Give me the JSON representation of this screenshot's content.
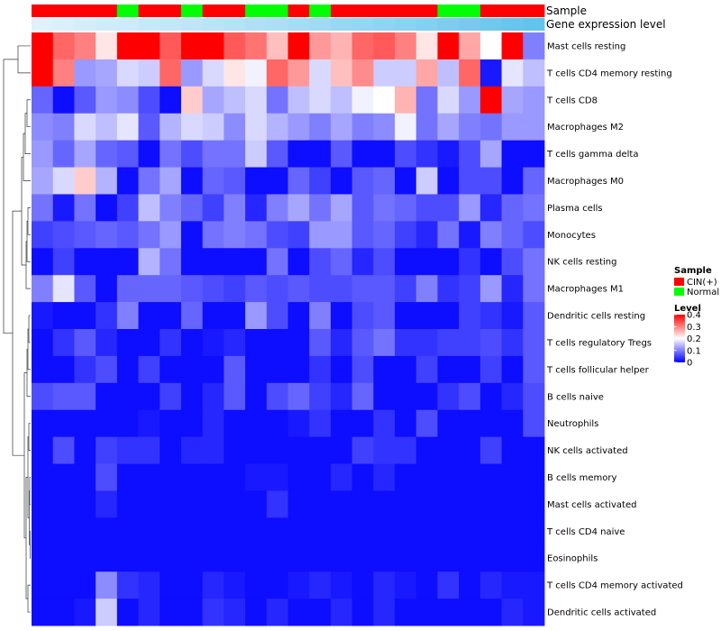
{
  "chart_data": {
    "type": "heatmap",
    "title": "",
    "row_labels": [
      "Mast cells resting",
      "T cells CD4 memory resting",
      "T cells CD8",
      "Macrophages M2",
      "T cells gamma delta",
      "Macrophages M0",
      "Plasma cells",
      "Monocytes",
      "NK cells resting",
      "Macrophages M1",
      "Dendritic cells resting",
      "T cells regulatory  Tregs",
      "T cells follicular helper",
      "B cells naive",
      "Neutrophils",
      "NK cells activated",
      "B cells memory",
      "Mast cells activated",
      "T cells CD4 naive",
      "Eosinophils",
      "T cells CD4 memory activated",
      "Dendritic cells activated"
    ],
    "column_annotations": {
      "sample_label": "Sample",
      "gene_expression_label": "Gene expression level",
      "sample_groups": [
        "CIN(+)",
        "CIN(+)",
        "CIN(+)",
        "CIN(+)",
        "Normal",
        "CIN(+)",
        "CIN(+)",
        "Normal",
        "CIN(+)",
        "CIN(+)",
        "Normal",
        "Normal",
        "CIN(+)",
        "Normal",
        "CIN(+)",
        "CIN(+)",
        "CIN(+)",
        "CIN(+)",
        "CIN(+)",
        "Normal",
        "Normal",
        "CIN(+)",
        "CIN(+)",
        "CIN(+)"
      ],
      "gene_expression_level": [
        0.05,
        0.08,
        0.12,
        0.15,
        0.18,
        0.22,
        0.25,
        0.28,
        0.32,
        0.35,
        0.38,
        0.42,
        0.45,
        0.5,
        0.55,
        0.58,
        0.62,
        0.66,
        0.7,
        0.75,
        0.8,
        0.85,
        0.9,
        0.95
      ]
    },
    "values": [
      [
        0.4,
        0.32,
        0.3,
        0.22,
        0.4,
        0.4,
        0.33,
        0.4,
        0.4,
        0.33,
        0.31,
        0.25,
        0.4,
        0.28,
        0.26,
        0.32,
        0.33,
        0.3,
        0.22,
        0.4,
        0.27,
        0.2,
        0.4,
        0.1
      ],
      [
        0.4,
        0.3,
        0.12,
        0.13,
        0.17,
        0.16,
        0.32,
        0.12,
        0.17,
        0.22,
        0.19,
        0.32,
        0.28,
        0.17,
        0.25,
        0.29,
        0.16,
        0.16,
        0.27,
        0.15,
        0.32,
        0.02,
        0.18,
        0.15
      ],
      [
        0.08,
        0.01,
        0.07,
        0.12,
        0.11,
        0.06,
        0.01,
        0.24,
        0.13,
        0.15,
        0.17,
        0.09,
        0.15,
        0.17,
        0.15,
        0.19,
        0.2,
        0.26,
        0.09,
        0.17,
        0.12,
        0.4,
        0.13,
        0.12
      ],
      [
        0.11,
        0.1,
        0.17,
        0.15,
        0.18,
        0.07,
        0.14,
        0.17,
        0.16,
        0.11,
        0.17,
        0.14,
        0.12,
        0.1,
        0.13,
        0.1,
        0.11,
        0.19,
        0.09,
        0.13,
        0.1,
        0.09,
        0.12,
        0.12
      ],
      [
        0.12,
        0.08,
        0.13,
        0.08,
        0.07,
        0.01,
        0.09,
        0.06,
        0.09,
        0.09,
        0.16,
        0.07,
        0.01,
        0.01,
        0.07,
        0.01,
        0.01,
        0.06,
        0.04,
        0.02,
        0.06,
        0.13,
        0.01,
        0.01
      ],
      [
        0.13,
        0.17,
        0.24,
        0.14,
        0.01,
        0.09,
        0.13,
        0.01,
        0.08,
        0.07,
        0.01,
        0.01,
        0.08,
        0.05,
        0.01,
        0.07,
        0.08,
        0.01,
        0.16,
        0.01,
        0.06,
        0.06,
        0.01,
        0.08
      ],
      [
        0.09,
        0.02,
        0.09,
        0.01,
        0.05,
        0.15,
        0.1,
        0.08,
        0.05,
        0.1,
        0.03,
        0.1,
        0.13,
        0.09,
        0.13,
        0.07,
        0.09,
        0.08,
        0.06,
        0.06,
        0.12,
        0.03,
        0.08,
        0.09
      ],
      [
        0.05,
        0.06,
        0.07,
        0.08,
        0.07,
        0.09,
        0.12,
        0.01,
        0.09,
        0.1,
        0.09,
        0.06,
        0.05,
        0.12,
        0.12,
        0.07,
        0.08,
        0.05,
        0.03,
        0.09,
        0.02,
        0.1,
        0.08,
        0.06
      ],
      [
        0.01,
        0.05,
        0.01,
        0.01,
        0.01,
        0.14,
        0.09,
        0.01,
        0.01,
        0.01,
        0.01,
        0.09,
        0.01,
        0.06,
        0.08,
        0.03,
        0.06,
        0.01,
        0.01,
        0.01,
        0.04,
        0.01,
        0.06,
        0.09
      ],
      [
        0.1,
        0.18,
        0.07,
        0.01,
        0.08,
        0.08,
        0.08,
        0.07,
        0.06,
        0.05,
        0.07,
        0.06,
        0.07,
        0.06,
        0.06,
        0.07,
        0.07,
        0.05,
        0.1,
        0.04,
        0.05,
        0.12,
        0.03,
        0.09
      ],
      [
        0.02,
        0.01,
        0.01,
        0.04,
        0.1,
        0.01,
        0.01,
        0.08,
        0.01,
        0.01,
        0.12,
        0.06,
        0.01,
        0.1,
        0.01,
        0.06,
        0.07,
        0.01,
        0.01,
        0.01,
        0.05,
        0.04,
        0.02,
        0.07
      ],
      [
        0.01,
        0.04,
        0.07,
        0.03,
        0.01,
        0.01,
        0.04,
        0.01,
        0.02,
        0.03,
        0.01,
        0.01,
        0.01,
        0.07,
        0.03,
        0.07,
        0.09,
        0.04,
        0.04,
        0.05,
        0.05,
        0.06,
        0.04,
        0.07
      ],
      [
        0.01,
        0.01,
        0.04,
        0.06,
        0.01,
        0.05,
        0.01,
        0.01,
        0.01,
        0.07,
        0.01,
        0.01,
        0.01,
        0.04,
        0.01,
        0.06,
        0.01,
        0.01,
        0.05,
        0.01,
        0.01,
        0.05,
        0.01,
        0.07
      ],
      [
        0.06,
        0.07,
        0.07,
        0.01,
        0.01,
        0.01,
        0.05,
        0.01,
        0.03,
        0.07,
        0.01,
        0.06,
        0.08,
        0.05,
        0.03,
        0.08,
        0.01,
        0.01,
        0.01,
        0.04,
        0.06,
        0.01,
        0.03,
        0.06
      ],
      [
        0.01,
        0.01,
        0.01,
        0.01,
        0.01,
        0.02,
        0.01,
        0.01,
        0.03,
        0.01,
        0.01,
        0.01,
        0.02,
        0.04,
        0.01,
        0.01,
        0.04,
        0.01,
        0.06,
        0.01,
        0.01,
        0.01,
        0.01,
        0.06
      ],
      [
        0.01,
        0.06,
        0.01,
        0.05,
        0.04,
        0.04,
        0.01,
        0.03,
        0.03,
        0.01,
        0.01,
        0.01,
        0.01,
        0.01,
        0.01,
        0.05,
        0.04,
        0.04,
        0.01,
        0.01,
        0.01,
        0.05,
        0.01,
        0.01
      ],
      [
        0.01,
        0.01,
        0.01,
        0.06,
        0.01,
        0.01,
        0.01,
        0.01,
        0.01,
        0.01,
        0.02,
        0.02,
        0.01,
        0.01,
        0.03,
        0.01,
        0.03,
        0.01,
        0.01,
        0.01,
        0.01,
        0.01,
        0.01,
        0.01
      ],
      [
        0.01,
        0.01,
        0.01,
        0.03,
        0.01,
        0.01,
        0.01,
        0.01,
        0.01,
        0.01,
        0.01,
        0.04,
        0.01,
        0.01,
        0.01,
        0.01,
        0.01,
        0.01,
        0.01,
        0.01,
        0.01,
        0.01,
        0.01,
        0.01
      ],
      [
        0.01,
        0.01,
        0.01,
        0.01,
        0.01,
        0.01,
        0.01,
        0.01,
        0.01,
        0.01,
        0.01,
        0.01,
        0.01,
        0.01,
        0.01,
        0.01,
        0.01,
        0.01,
        0.01,
        0.01,
        0.01,
        0.01,
        0.01,
        0.01
      ],
      [
        0.01,
        0.01,
        0.01,
        0.01,
        0.01,
        0.01,
        0.01,
        0.01,
        0.01,
        0.01,
        0.01,
        0.01,
        0.01,
        0.01,
        0.01,
        0.01,
        0.01,
        0.01,
        0.01,
        0.01,
        0.01,
        0.01,
        0.01,
        0.01
      ],
      [
        0.01,
        0.01,
        0.01,
        0.11,
        0.04,
        0.03,
        0.01,
        0.01,
        0.03,
        0.02,
        0.01,
        0.01,
        0.02,
        0.03,
        0.02,
        0.01,
        0.03,
        0.02,
        0.01,
        0.04,
        0.01,
        0.03,
        0.02,
        0.02
      ],
      [
        0.01,
        0.01,
        0.02,
        0.16,
        0.01,
        0.03,
        0.01,
        0.01,
        0.04,
        0.03,
        0.01,
        0.03,
        0.01,
        0.01,
        0.03,
        0.01,
        0.03,
        0.01,
        0.01,
        0.01,
        0.01,
        0.01,
        0.03,
        0.02
      ]
    ],
    "legend": {
      "sample_title": "Sample",
      "sample_entries": [
        {
          "label": "CIN(+)",
          "color": "#ff0000"
        },
        {
          "label": "Normal",
          "color": "#00ff00"
        }
      ],
      "level_title": "Level",
      "level_ticks": [
        "0",
        "0.1",
        "0.2",
        "0.3",
        "0.4"
      ],
      "level_range": [
        0,
        0.4
      ],
      "placement": "right"
    },
    "colors": {
      "low": "#0000ff",
      "mid": "#ffffff",
      "high": "#ff0000",
      "anno_low": "#e6f4fb",
      "anno_high": "#5bc0eb"
    }
  }
}
